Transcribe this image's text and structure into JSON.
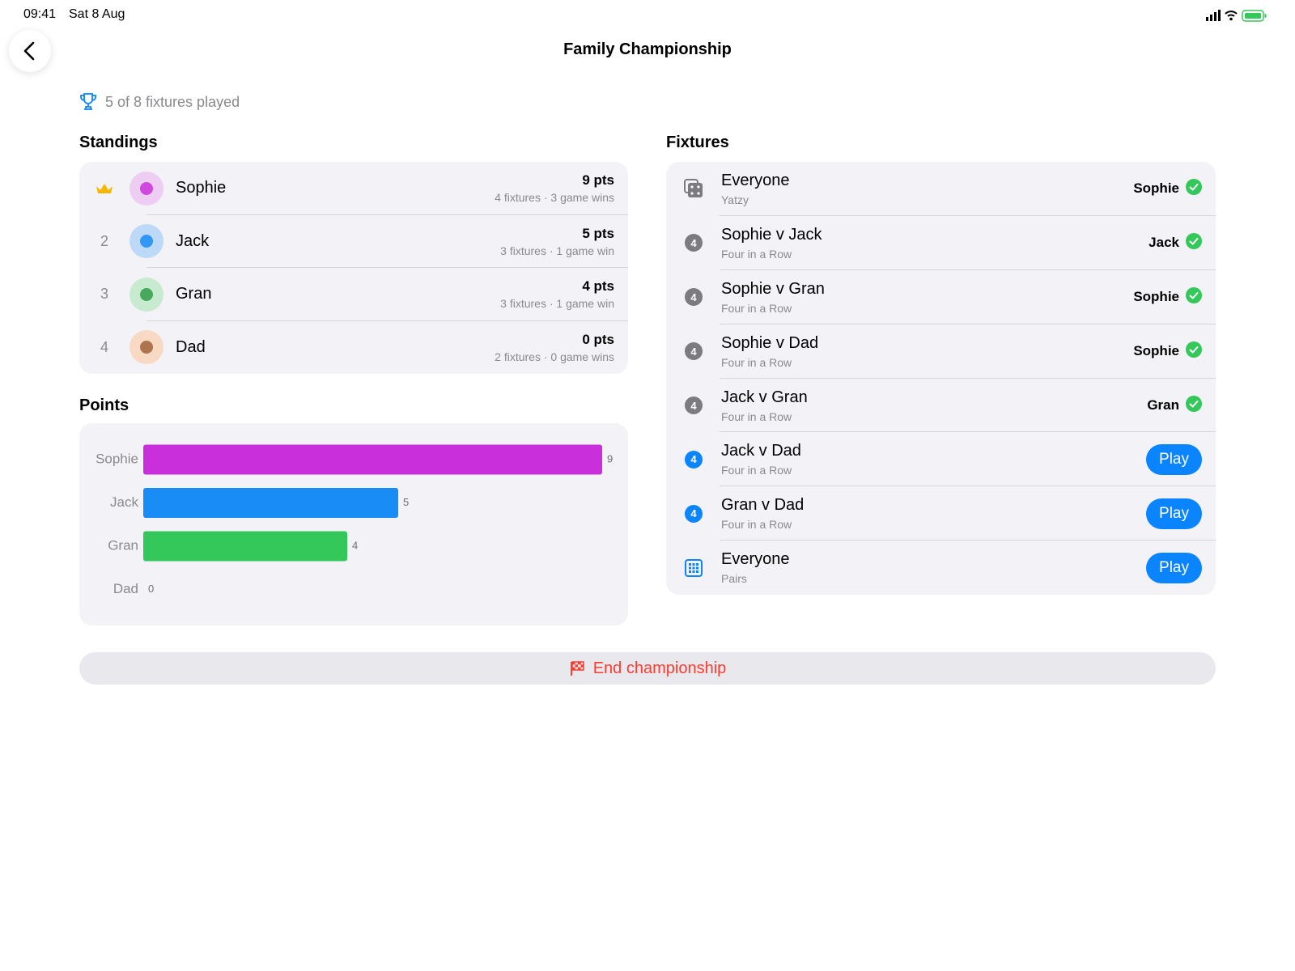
{
  "status_bar": {
    "time": "09:41",
    "date": "Sat 8 Aug"
  },
  "header": {
    "title": "Family Championship"
  },
  "summary": "5 of 8 fixtures played",
  "standings": {
    "heading": "Standings",
    "rows": [
      {
        "name": "Sophie",
        "points": "9 pts",
        "detail": "4 fixtures · 3 game wins"
      },
      {
        "rank": "2",
        "name": "Jack",
        "points": "5 pts",
        "detail": "3 fixtures · 1 game win"
      },
      {
        "rank": "3",
        "name": "Gran",
        "points": "4 pts",
        "detail": "3 fixtures · 1 game win"
      },
      {
        "rank": "4",
        "name": "Dad",
        "points": "0 pts",
        "detail": "2 fixtures · 0 game wins"
      }
    ]
  },
  "points_heading": "Points",
  "chart_data": {
    "type": "hbar",
    "categories": [
      "Sophie",
      "Jack",
      "Gran",
      "Dad"
    ],
    "values": [
      9,
      5,
      4,
      0
    ],
    "colors": [
      "#c930dc",
      "#1a8cf5",
      "#34c759",
      "#ff9500"
    ],
    "xlim": [
      0,
      9
    ]
  },
  "fixtures": {
    "heading": "Fixtures",
    "rows": [
      {
        "title": "Everyone",
        "subtitle": "Yatzy",
        "winner": "Sophie"
      },
      {
        "badge": "4",
        "title": "Sophie v Jack",
        "subtitle": "Four in a Row",
        "winner": "Jack"
      },
      {
        "badge": "4",
        "title": "Sophie v Gran",
        "subtitle": "Four in a Row",
        "winner": "Sophie"
      },
      {
        "badge": "4",
        "title": "Sophie v Dad",
        "subtitle": "Four in a Row",
        "winner": "Sophie"
      },
      {
        "badge": "4",
        "title": "Jack v Gran",
        "subtitle": "Four in a Row",
        "winner": "Gran"
      },
      {
        "badge": "4",
        "title": "Jack v Dad",
        "subtitle": "Four in a Row",
        "action": "Play"
      },
      {
        "badge": "4",
        "title": "Gran v Dad",
        "subtitle": "Four in a Row",
        "action": "Play"
      },
      {
        "title": "Everyone",
        "subtitle": "Pairs",
        "action": "Play"
      }
    ]
  },
  "end_button": "End championship"
}
